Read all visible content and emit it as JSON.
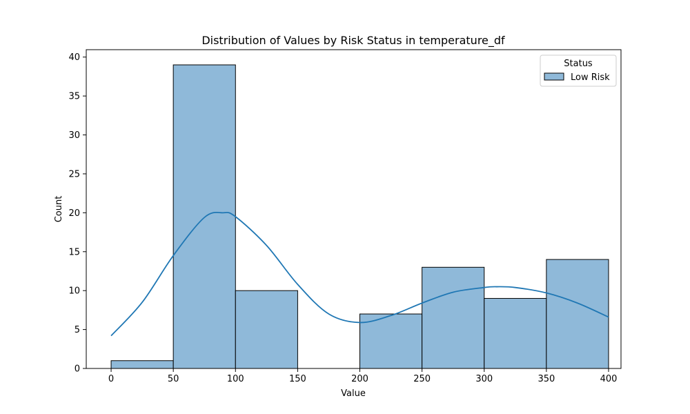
{
  "chart_data": {
    "type": "histogram",
    "title": "Distribution of Values by Risk Status in temperature_df",
    "xlabel": "Value",
    "ylabel": "Count",
    "xlim": [
      -20,
      410
    ],
    "ylim": [
      0,
      40.95
    ],
    "xticks": [
      0,
      50,
      100,
      150,
      200,
      250,
      300,
      350,
      400
    ],
    "xtick_labels": [
      "0",
      "50",
      "100",
      "150",
      "200",
      "250",
      "300",
      "350",
      "400"
    ],
    "yticks": [
      0,
      5,
      10,
      15,
      20,
      25,
      30,
      35,
      40
    ],
    "ytick_labels": [
      "0",
      "5",
      "10",
      "15",
      "20",
      "25",
      "30",
      "35",
      "40"
    ],
    "grid": false,
    "legend": {
      "title": "Status",
      "placement": "top-right",
      "entries": [
        "Low Risk"
      ]
    },
    "series": [
      {
        "name": "Low Risk",
        "color": "#1f77b4",
        "fill_color": "#8fb9d9",
        "bins": [
          {
            "start": 0,
            "end": 50,
            "count": 1
          },
          {
            "start": 50,
            "end": 100,
            "count": 39
          },
          {
            "start": 100,
            "end": 150,
            "count": 10
          },
          {
            "start": 150,
            "end": 200,
            "count": 0
          },
          {
            "start": 200,
            "end": 250,
            "count": 7
          },
          {
            "start": 250,
            "end": 300,
            "count": 13
          },
          {
            "start": 300,
            "end": 350,
            "count": 9
          },
          {
            "start": 350,
            "end": 400,
            "count": 14
          }
        ],
        "kde": {
          "x": [
            0,
            25,
            50,
            75,
            90,
            100,
            125,
            150,
            175,
            200,
            225,
            250,
            275,
            300,
            310,
            325,
            350,
            375,
            400
          ],
          "y": [
            4.2,
            8.5,
            14.5,
            19.4,
            20.0,
            19.5,
            15.8,
            10.8,
            7.0,
            5.9,
            6.8,
            8.4,
            9.8,
            10.4,
            10.5,
            10.4,
            9.7,
            8.4,
            6.6
          ]
        }
      }
    ]
  }
}
